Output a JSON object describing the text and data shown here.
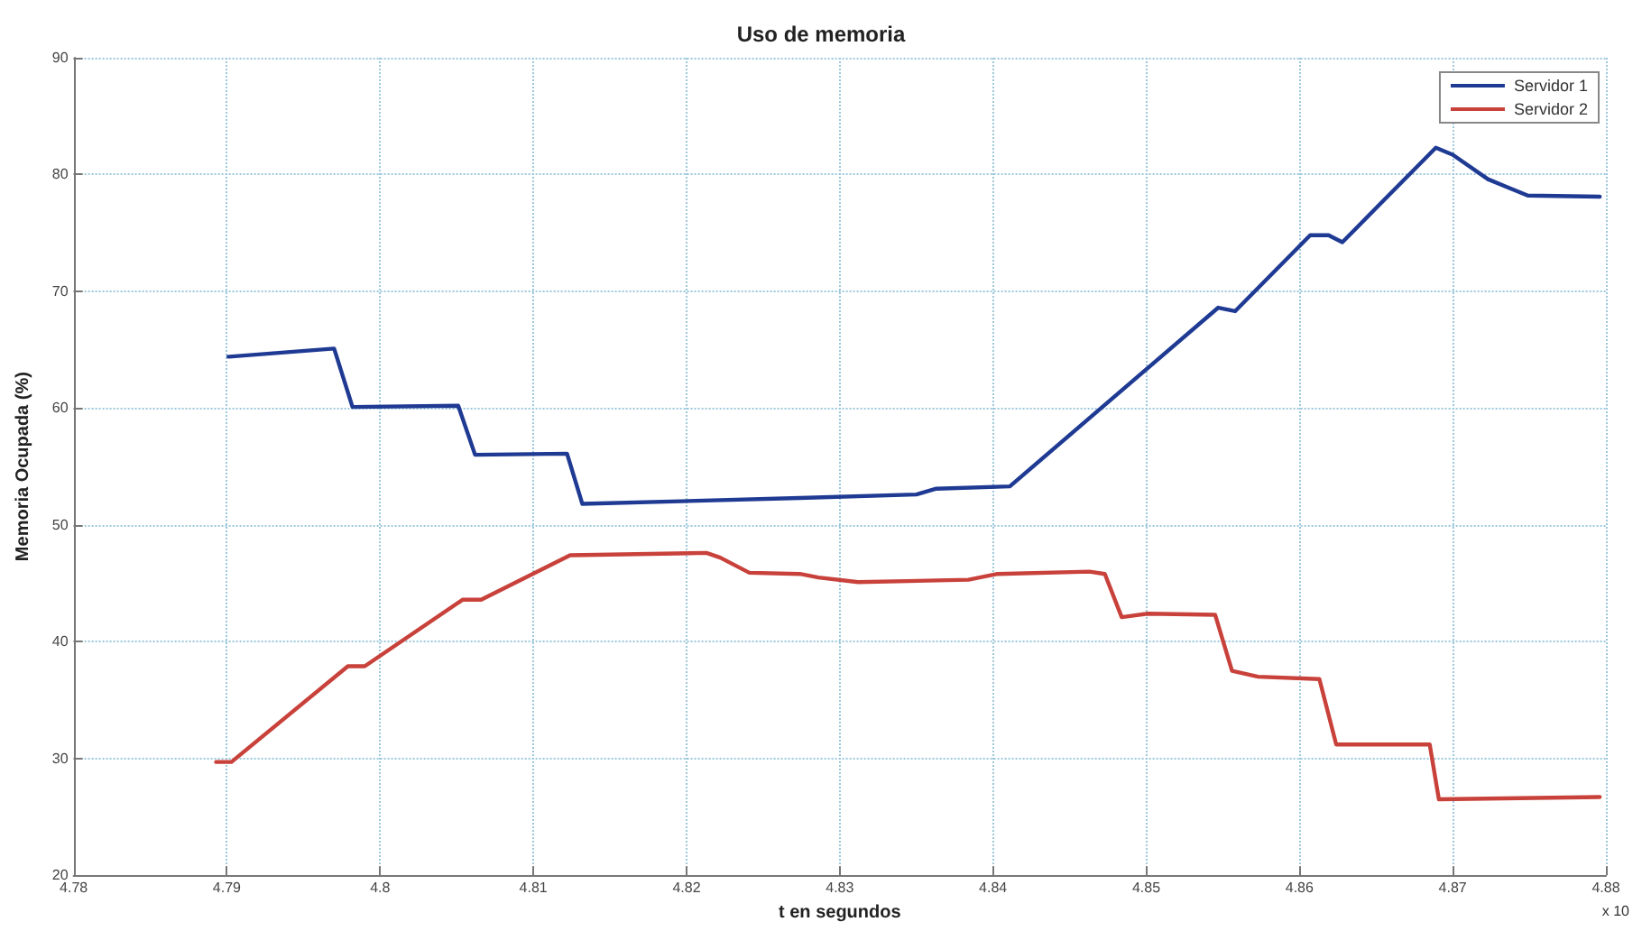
{
  "chart_data": {
    "type": "line",
    "title": "Uso de memoria",
    "xlabel": "t en segundos",
    "ylabel": "Memoria Ocupada (%)",
    "xlim": [
      4.78,
      4.88
    ],
    "xticks": [
      4.78,
      4.79,
      4.8,
      4.81,
      4.82,
      4.83,
      4.84,
      4.85,
      4.86,
      4.87,
      4.88
    ],
    "ylim": [
      20,
      90
    ],
    "yticks": [
      20,
      30,
      40,
      50,
      60,
      70,
      80,
      90
    ],
    "grid": true,
    "legend": "top right",
    "marker": "none",
    "line_style": "solid",
    "annotations": [
      "x 10"
    ],
    "series": [
      {
        "name": "Servidor 1",
        "color": "#1f3a93",
        "x": [
          4.7901,
          4.797,
          4.7982,
          4.8051,
          4.8062,
          4.8122,
          4.8132,
          4.8274,
          4.835,
          4.8363,
          4.8411,
          4.8547,
          4.8558,
          4.8607,
          4.8619,
          4.8628,
          4.8689,
          4.87,
          4.8723,
          4.8736,
          4.8749,
          4.8796
        ],
        "values": [
          64.4,
          65.1,
          60.1,
          60.2,
          56.0,
          56.1,
          51.8,
          52.3,
          52.6,
          53.1,
          53.3,
          68.6,
          68.3,
          74.8,
          74.8,
          74.2,
          82.3,
          81.7,
          79.6,
          78.9,
          78.2,
          78.1
        ]
      },
      {
        "name": "Servidor 2",
        "color": "#c8413a",
        "x": [
          4.7893,
          4.7903,
          4.7979,
          4.799,
          4.8054,
          4.8066,
          4.8124,
          4.8213,
          4.8222,
          4.8241,
          4.8274,
          4.8286,
          4.8312,
          4.8384,
          4.8403,
          4.8463,
          4.8473,
          4.8484,
          4.8501,
          4.8545,
          4.8556,
          4.8573,
          4.8613,
          4.8624,
          4.8685,
          4.8691,
          4.8796
        ],
        "values": [
          29.7,
          29.7,
          37.9,
          37.9,
          43.6,
          43.6,
          47.4,
          47.6,
          47.2,
          45.9,
          45.8,
          45.5,
          45.1,
          45.3,
          45.8,
          46.0,
          45.8,
          42.1,
          42.4,
          42.3,
          37.5,
          37.0,
          36.8,
          31.2,
          31.2,
          26.5,
          26.7
        ]
      }
    ]
  }
}
